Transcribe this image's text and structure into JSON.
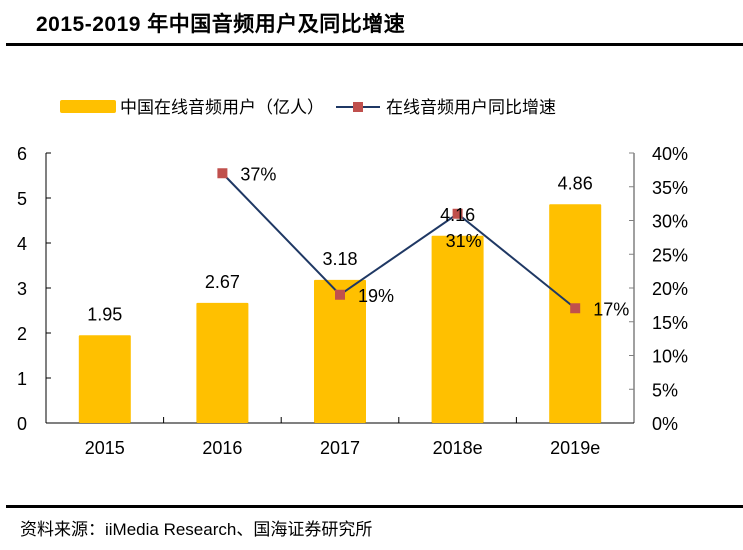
{
  "header": {
    "title": "2015-2019 年中国音频用户及同比增速"
  },
  "footer": {
    "source": "资料来源：iiMedia Research、国海证券研究所"
  },
  "chart_data": {
    "type": "bar+line",
    "title": "2015-2019 年中国音频用户及同比增速",
    "categories": [
      "2015",
      "2016",
      "2017",
      "2018e",
      "2019e"
    ],
    "series": [
      {
        "name": "中国在线音频用户（亿人）",
        "type": "bar",
        "axis": "left",
        "color": "#FFC000",
        "values": [
          1.95,
          2.67,
          3.18,
          4.16,
          4.86
        ],
        "labels": [
          "1.95",
          "2.67",
          "3.18",
          "4.16",
          "4.86"
        ]
      },
      {
        "name": "在线音频用户同比增速",
        "type": "line",
        "axis": "right",
        "color": "#1F3864",
        "marker_color": "#C0504D",
        "values": [
          null,
          37,
          19,
          31,
          17
        ],
        "labels": [
          "",
          "37%",
          "19%",
          "31%",
          "17%"
        ]
      }
    ],
    "left_axis": {
      "ylim": [
        0,
        6
      ],
      "ticks": [
        "0",
        "1",
        "2",
        "3",
        "4",
        "5",
        "6"
      ]
    },
    "right_axis": {
      "ylim": [
        0,
        40
      ],
      "ticks": [
        "0%",
        "5%",
        "10%",
        "15%",
        "20%",
        "25%",
        "30%",
        "35%",
        "40%"
      ]
    },
    "legend": {
      "position": "top"
    },
    "grid": false
  }
}
